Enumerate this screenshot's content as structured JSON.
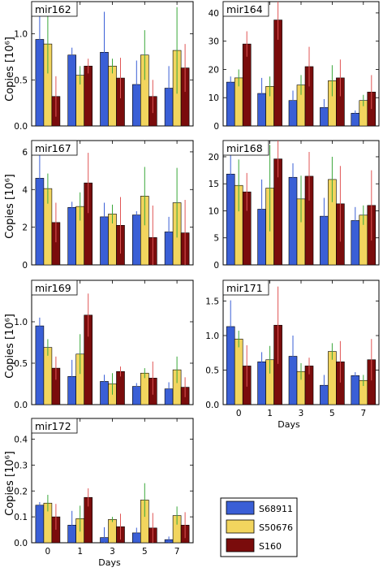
{
  "figure": {
    "ylabel": "Copies [10⁶]",
    "xlabel": "Days",
    "legend": {
      "placement": "bottom-right",
      "entries": [
        {
          "name": "S68911",
          "color": "#3a5fd6"
        },
        {
          "name": "S50676",
          "color": "#f2d55e"
        },
        {
          "name": "S160",
          "color": "#7a0c0c"
        }
      ]
    },
    "error_colors": [
      "#3a5fd6",
      "#3aa83a",
      "#e05555"
    ]
  },
  "chart_data": [
    {
      "type": "bar",
      "title": "mir162",
      "categories": [
        "0",
        "1",
        "3",
        "5",
        "7"
      ],
      "ylim": [
        0,
        1.35
      ],
      "yticks": [
        0,
        0.5,
        1.0
      ],
      "ytick_labels": [
        "0.0",
        "0.5",
        "1.0"
      ],
      "series": [
        {
          "name": "S68911",
          "values": [
            0.94,
            0.77,
            0.8,
            0.45,
            0.41
          ],
          "errors": [
            0.27,
            0.08,
            0.44,
            0.26,
            0.24
          ]
        },
        {
          "name": "S50676",
          "values": [
            0.89,
            0.55,
            0.65,
            0.77,
            0.82
          ],
          "errors": [
            0.32,
            0.1,
            0.08,
            0.27,
            0.47
          ]
        },
        {
          "name": "S160",
          "values": [
            0.32,
            0.65,
            0.52,
            0.32,
            0.63
          ],
          "errors": [
            0.22,
            0.08,
            0.22,
            0.18,
            0.26
          ]
        }
      ]
    },
    {
      "type": "bar",
      "title": "mir164",
      "categories": [
        "0",
        "1",
        "3",
        "5",
        "7"
      ],
      "ylim": [
        0,
        44
      ],
      "yticks": [
        0,
        10,
        20,
        30,
        40
      ],
      "ytick_labels": [
        "0",
        "10",
        "20",
        "30",
        "40"
      ],
      "series": [
        {
          "name": "S68911",
          "values": [
            15.5,
            11.5,
            9.0,
            6.5,
            4.5
          ],
          "errors": [
            2.0,
            5.5,
            3.5,
            3.0,
            1.0
          ]
        },
        {
          "name": "S50676",
          "values": [
            17.0,
            14.0,
            14.5,
            16.0,
            9.0
          ],
          "errors": [
            3.0,
            3.5,
            3.5,
            5.5,
            2.0
          ]
        },
        {
          "name": "S160",
          "values": [
            29.0,
            37.5,
            21.0,
            17.0,
            12.0
          ],
          "errors": [
            4.5,
            7.0,
            7.0,
            6.5,
            6.0
          ]
        }
      ]
    },
    {
      "type": "bar",
      "title": "mir167",
      "categories": [
        "0",
        "1",
        "3",
        "5",
        "7"
      ],
      "ylim": [
        0,
        6.6
      ],
      "yticks": [
        0,
        2,
        4,
        6
      ],
      "ytick_labels": [
        "0",
        "2",
        "4",
        "6"
      ],
      "series": [
        {
          "name": "S68911",
          "values": [
            4.6,
            3.05,
            2.55,
            2.65,
            1.75
          ],
          "errors": [
            1.4,
            0.3,
            0.75,
            0.2,
            0.8
          ]
        },
        {
          "name": "S50676",
          "values": [
            4.05,
            3.1,
            2.7,
            3.65,
            3.3
          ],
          "errors": [
            0.8,
            0.75,
            0.5,
            1.55,
            1.85
          ]
        },
        {
          "name": "S160",
          "values": [
            2.25,
            4.35,
            2.1,
            1.45,
            1.7
          ],
          "errors": [
            1.05,
            1.6,
            1.5,
            1.7,
            1.75
          ]
        }
      ]
    },
    {
      "type": "bar",
      "title": "mir168",
      "categories": [
        "0",
        "1",
        "3",
        "5",
        "7"
      ],
      "ylim": [
        0,
        23
      ],
      "yticks": [
        0,
        5,
        10,
        15,
        20
      ],
      "ytick_labels": [
        "0",
        "5",
        "10",
        "15",
        "20"
      ],
      "series": [
        {
          "name": "S68911",
          "values": [
            16.8,
            10.3,
            16.2,
            9.0,
            8.2
          ],
          "errors": [
            4.2,
            5.5,
            2.6,
            3.4,
            2.5
          ]
        },
        {
          "name": "S50676",
          "values": [
            14.7,
            14.2,
            12.2,
            15.8,
            9.2
          ],
          "errors": [
            4.8,
            8.0,
            4.3,
            4.2,
            1.8
          ]
        },
        {
          "name": "S160",
          "values": [
            13.5,
            19.6,
            16.4,
            11.3,
            11.0
          ],
          "errors": [
            3.5,
            3.4,
            4.5,
            7.0,
            6.5
          ]
        }
      ]
    },
    {
      "type": "bar",
      "title": "mir169",
      "categories": [
        "0",
        "1",
        "3",
        "5",
        "7"
      ],
      "ylim": [
        0,
        1.5
      ],
      "yticks": [
        0,
        0.5,
        1.0
      ],
      "ytick_labels": [
        "0.0",
        "0.5",
        "1.0"
      ],
      "series": [
        {
          "name": "S68911",
          "values": [
            0.95,
            0.34,
            0.28,
            0.22,
            0.19
          ],
          "errors": [
            0.1,
            0.2,
            0.08,
            0.04,
            0.08
          ]
        },
        {
          "name": "S50676",
          "values": [
            0.69,
            0.61,
            0.25,
            0.38,
            0.42
          ],
          "errors": [
            0.1,
            0.24,
            0.13,
            0.06,
            0.16
          ]
        },
        {
          "name": "S160",
          "values": [
            0.44,
            1.08,
            0.4,
            0.32,
            0.21
          ],
          "errors": [
            0.14,
            0.26,
            0.06,
            0.2,
            0.12
          ]
        }
      ]
    },
    {
      "type": "bar",
      "title": "mir171",
      "categories": [
        "0",
        "1",
        "3",
        "5",
        "7"
      ],
      "ylim": [
        0,
        1.8
      ],
      "yticks": [
        0,
        0.5,
        1.0,
        1.5
      ],
      "ytick_labels": [
        "0.0",
        "0.5",
        "1.0",
        "1.5"
      ],
      "series": [
        {
          "name": "S68911",
          "values": [
            1.13,
            0.62,
            0.7,
            0.28,
            0.42
          ],
          "errors": [
            0.38,
            0.14,
            0.3,
            0.15,
            0.05
          ]
        },
        {
          "name": "S50676",
          "values": [
            0.95,
            0.65,
            0.48,
            0.77,
            0.35
          ],
          "errors": [
            0.12,
            0.2,
            0.12,
            0.12,
            0.08
          ]
        },
        {
          "name": "S160",
          "values": [
            0.56,
            1.15,
            0.56,
            0.62,
            0.65
          ],
          "errors": [
            0.3,
            0.56,
            0.12,
            0.3,
            0.3
          ]
        }
      ]
    },
    {
      "type": "bar",
      "title": "mir172",
      "categories": [
        "0",
        "1",
        "3",
        "5",
        "7"
      ],
      "ylim": [
        0,
        0.48
      ],
      "yticks": [
        0,
        0.1,
        0.2,
        0.3,
        0.4
      ],
      "ytick_labels": [
        "0.0",
        "0.1",
        "0.2",
        "0.3",
        "0.4"
      ],
      "series": [
        {
          "name": "S68911",
          "values": [
            0.145,
            0.068,
            0.02,
            0.038,
            0.012
          ],
          "errors": [
            0.012,
            0.055,
            0.04,
            0.02,
            0.012
          ]
        },
        {
          "name": "S50676",
          "values": [
            0.153,
            0.093,
            0.09,
            0.165,
            0.105
          ],
          "errors": [
            0.032,
            0.05,
            0.01,
            0.065,
            0.035
          ]
        },
        {
          "name": "S160",
          "values": [
            0.1,
            0.175,
            0.062,
            0.057,
            0.068
          ],
          "errors": [
            0.05,
            0.035,
            0.05,
            0.058,
            0.05
          ]
        }
      ]
    }
  ]
}
